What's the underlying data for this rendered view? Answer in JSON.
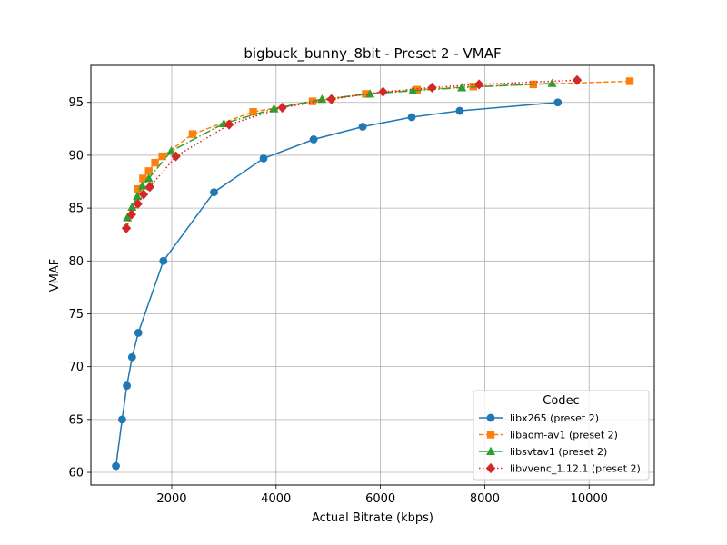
{
  "chart_data": {
    "type": "line",
    "title": "bigbuck_bunny_8bit - Preset 2 - VMAF",
    "xlabel": "Actual Bitrate (kbps)",
    "ylabel": "VMAF",
    "xlim": [
      450,
      11250
    ],
    "ylim": [
      58.8,
      98.5
    ],
    "xticks": [
      2000,
      4000,
      6000,
      8000,
      10000
    ],
    "yticks": [
      60,
      65,
      70,
      75,
      80,
      85,
      90,
      95
    ],
    "grid": true,
    "legend": {
      "title": "Codec",
      "placement": "bottom-right"
    },
    "series": [
      {
        "name": "libx265 (preset 2)",
        "color": "#1f77b4",
        "marker": "circle",
        "linestyle": "solid",
        "x": [
          930,
          1050,
          1140,
          1240,
          1360,
          1840,
          2810,
          3760,
          4720,
          5660,
          6600,
          7520,
          9400
        ],
        "y": [
          60.6,
          65.0,
          68.2,
          70.9,
          73.2,
          80.0,
          86.5,
          89.7,
          91.5,
          92.7,
          93.6,
          94.2,
          95.0
        ]
      },
      {
        "name": "libaom-av1 (preset 2)",
        "color": "#ff7f0e",
        "marker": "square",
        "linestyle": "dashed",
        "x": [
          1360,
          1450,
          1560,
          1680,
          1820,
          2400,
          3560,
          4700,
          5720,
          6700,
          7780,
          8930,
          10780
        ],
        "y": [
          86.8,
          87.8,
          88.5,
          89.3,
          89.9,
          92.0,
          94.1,
          95.1,
          95.8,
          96.2,
          96.5,
          96.7,
          97.0
        ]
      },
      {
        "name": "libsvtav1 (preset 2)",
        "color": "#2ca02c",
        "marker": "triangle",
        "linestyle": "dashdot",
        "x": [
          1150,
          1240,
          1340,
          1440,
          1560,
          1990,
          3000,
          3960,
          4880,
          5800,
          6620,
          7560,
          9290
        ],
        "y": [
          84.1,
          85.1,
          86.1,
          87.1,
          87.8,
          90.4,
          93.0,
          94.4,
          95.3,
          95.8,
          96.1,
          96.4,
          96.8
        ]
      },
      {
        "name": "libvvenc_1.12.1 (preset 2)",
        "color": "#d62728",
        "marker": "diamond",
        "linestyle": "dotted",
        "x": [
          1130,
          1230,
          1350,
          1460,
          1580,
          2080,
          3100,
          4120,
          5060,
          6050,
          6990,
          7890,
          9770
        ],
        "y": [
          83.1,
          84.4,
          85.4,
          86.3,
          87.0,
          89.9,
          92.9,
          94.5,
          95.3,
          96.0,
          96.4,
          96.7,
          97.1
        ]
      }
    ]
  }
}
